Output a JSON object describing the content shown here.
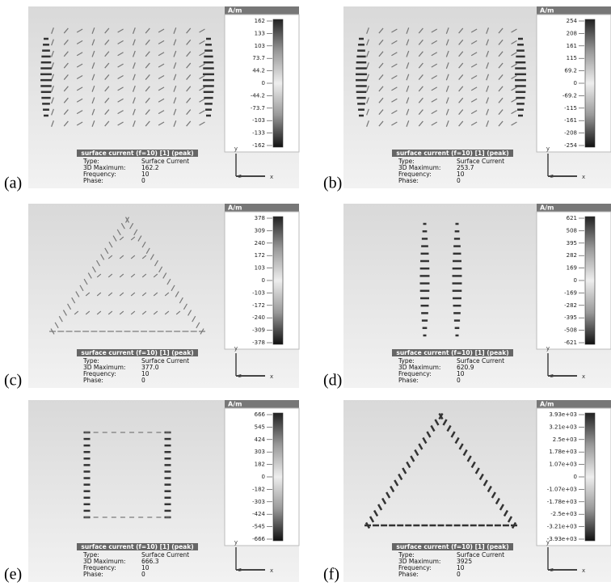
{
  "panels": [
    {
      "label": "(a)",
      "unit": "A/m",
      "scale": [
        "162",
        "133",
        "103",
        "73.7",
        "44.2",
        "0",
        "-44.2",
        "-73.7",
        "-103",
        "-133",
        "-162"
      ],
      "info": {
        "title": "surface current (f=10) [1] (peak)",
        "rows": [
          [
            "Type:",
            "Surface Current"
          ],
          [
            "3D Maximum:",
            "162.2"
          ],
          [
            "Frequency:",
            "10"
          ],
          [
            "Phase:",
            "0"
          ]
        ]
      },
      "axes": [
        "y",
        "z",
        "x"
      ]
    },
    {
      "label": "(b)",
      "unit": "A/m",
      "scale": [
        "254",
        "208",
        "161",
        "115",
        "69.2",
        "0",
        "-69.2",
        "-115",
        "-161",
        "-208",
        "-254"
      ],
      "info": {
        "title": "surface current (f=10) [1] (peak)",
        "rows": [
          [
            "Type:",
            "Surface Current"
          ],
          [
            "3D Maximum:",
            "253.7"
          ],
          [
            "Frequency:",
            "10"
          ],
          [
            "Phase:",
            "0"
          ]
        ]
      },
      "axes": [
        "y",
        "z",
        "x"
      ]
    },
    {
      "label": "(c)",
      "unit": "A/m",
      "scale": [
        "378",
        "309",
        "240",
        "172",
        "103",
        "0",
        "-103",
        "-172",
        "-240",
        "-309",
        "-378"
      ],
      "info": {
        "title": "surface current (f=10) [1] (peak)",
        "rows": [
          [
            "Type:",
            "Surface Current"
          ],
          [
            "3D Maximum:",
            "377.0"
          ],
          [
            "Frequency:",
            "10"
          ],
          [
            "Phase:",
            "0"
          ]
        ]
      },
      "axes": [
        "y",
        "z",
        "x"
      ]
    },
    {
      "label": "(d)",
      "unit": "A/m",
      "scale": [
        "621",
        "508",
        "395",
        "282",
        "169",
        "0",
        "-169",
        "-282",
        "-395",
        "-508",
        "-621"
      ],
      "info": {
        "title": "surface current (f=10) [1] (peak)",
        "rows": [
          [
            "Type:",
            "Surface Current"
          ],
          [
            "3D Maximum:",
            "620.9"
          ],
          [
            "Frequency:",
            "10"
          ],
          [
            "Phase:",
            "0"
          ]
        ]
      },
      "axes": [
        "y",
        "z",
        "x"
      ]
    },
    {
      "label": "(e)",
      "unit": "A/m",
      "scale": [
        "666",
        "545",
        "424",
        "303",
        "182",
        "0",
        "-182",
        "-303",
        "-424",
        "-545",
        "-666"
      ],
      "info": {
        "title": "surface current (f=10) [1] (peak)",
        "rows": [
          [
            "Type:",
            "Surface Current"
          ],
          [
            "3D Maximum:",
            "666.3"
          ],
          [
            "Frequency:",
            "10"
          ],
          [
            "Phase:",
            "0"
          ]
        ]
      },
      "axes": [
        "y",
        "z",
        "x"
      ]
    },
    {
      "label": "(f)",
      "unit": "A/m",
      "scale": [
        "3.93e+03",
        "3.21e+03",
        "2.5e+03",
        "1.78e+03",
        "1.07e+03",
        "0",
        "-1.07e+03",
        "-1.78e+03",
        "-2.5e+03",
        "-3.21e+03",
        "-3.93e+03"
      ],
      "info": {
        "title": "surface current (f=10) [1] (peak)",
        "rows": [
          [
            "Type:",
            "Surface Current"
          ],
          [
            "3D Maximum:",
            "3925"
          ],
          [
            "Frequency:",
            "10"
          ],
          [
            "Phase:",
            "0"
          ]
        ]
      },
      "axes": [
        "y",
        "z",
        "x"
      ]
    }
  ]
}
